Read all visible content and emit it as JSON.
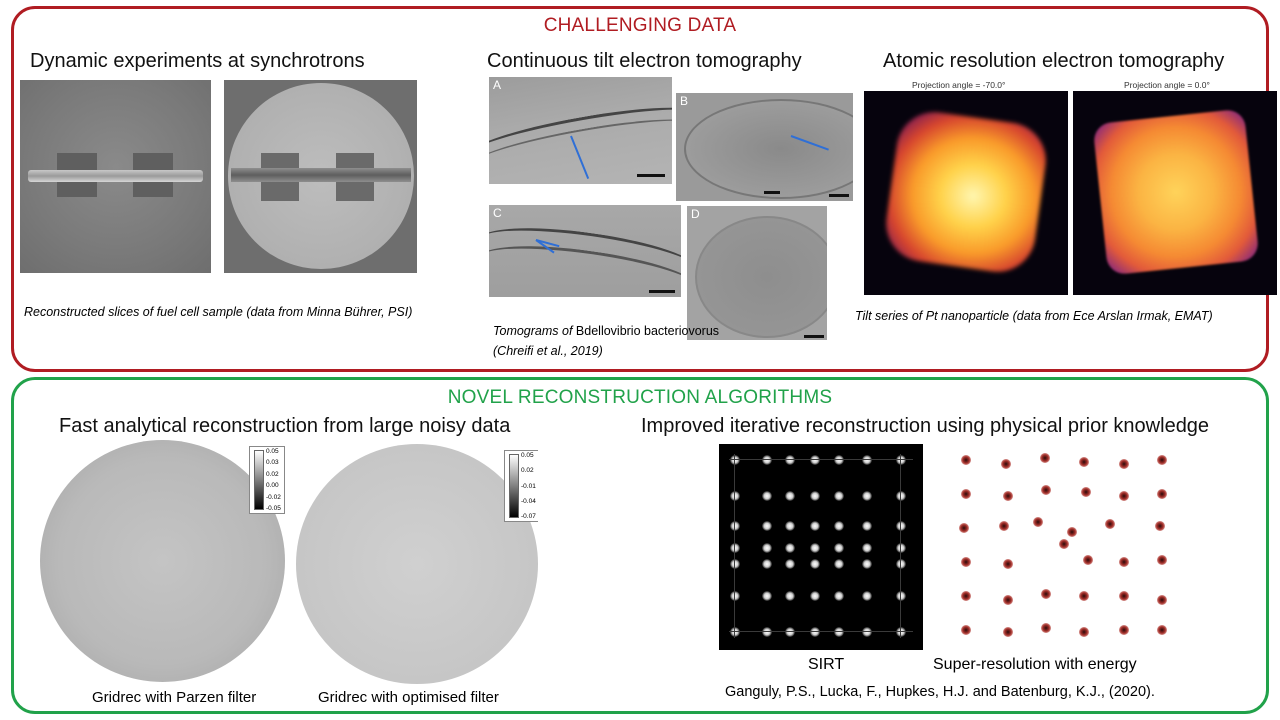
{
  "top_panel": {
    "title": "CHALLENGING DATA",
    "title_color": "#b01c22",
    "sections": {
      "synchrotron": {
        "heading": "Dynamic experiments at synchrotrons",
        "caption": "Reconstructed slices of fuel cell sample (data from Minna Bührer, PSI)"
      },
      "tilt": {
        "heading": "Continuous tilt electron tomography",
        "panel_labels": [
          "A",
          "B",
          "C",
          "D"
        ],
        "caption_prefix": "Tomograms of",
        "caption_species": "Bdellovibrio bacteriovorus",
        "caption_line2": "(Chreifi et al., 2019)"
      },
      "atomic": {
        "heading": "Atomic resolution electron tomography",
        "projection_labels": [
          "Projection angle = -70.0°",
          "Projection angle = 0.0°"
        ],
        "caption": "Tilt series of Pt nanoparticle (data from Ece Arslan Irmak, EMAT)"
      }
    }
  },
  "bottom_panel": {
    "title": "NOVEL RECONSTRUCTION ALGORITHMS",
    "title_color": "#21a24a",
    "sections": {
      "analytical": {
        "heading": "Fast analytical reconstruction from large noisy data",
        "captions": [
          "Gridrec with Parzen filter",
          "Gridrec with optimised filter"
        ],
        "colorbar_1": [
          "0.05",
          "0.03",
          "0.02",
          "0.00",
          "-0.02",
          "-0.05"
        ],
        "colorbar_2": [
          "0.05",
          "0.02",
          "-0.01",
          "-0.04",
          "-0.07"
        ]
      },
      "iterative": {
        "heading": "Improved iterative reconstruction using physical prior knowledge",
        "captions": [
          "SIRT",
          "Super-resolution with energy"
        ],
        "citation": "Ganguly, P.S., Lucka, F., Hupkes, H.J. and Batenburg, K.J., (2020)."
      }
    }
  }
}
